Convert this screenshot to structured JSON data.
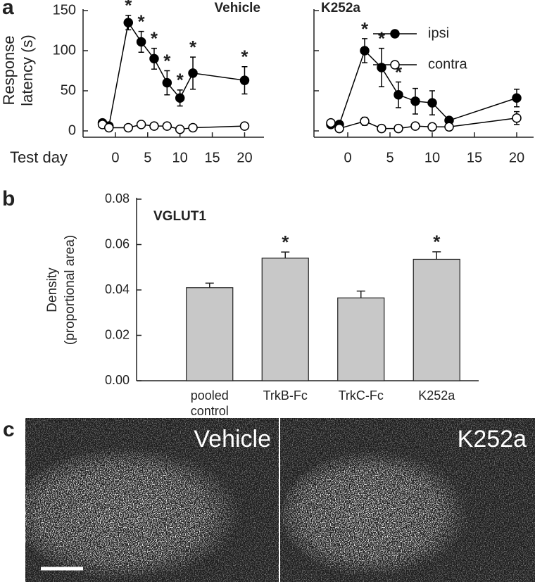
{
  "chart_data": [
    {
      "type": "line",
      "panel_label": "a",
      "title": "Vehicle",
      "ylabel": [
        "Response",
        "latency (s)"
      ],
      "xlabel": "Test day",
      "x": [
        -2,
        -1,
        2,
        4,
        6,
        8,
        10,
        12,
        20
      ],
      "series": [
        {
          "color": "#000000",
          "marker_fill": "#000000",
          "values": [
            10,
            6,
            135,
            111,
            90,
            60,
            41,
            72,
            63
          ],
          "errors": [
            3,
            2,
            9,
            13,
            13,
            15,
            10,
            20,
            17
          ]
        },
        {
          "color": "#000000",
          "marker_fill": "#ffffff",
          "values": [
            8,
            4,
            4,
            8,
            6,
            6,
            2,
            4,
            6
          ],
          "errors": [
            2,
            1,
            2,
            2,
            2,
            2,
            1,
            2,
            2
          ]
        }
      ],
      "significant": [
        false,
        false,
        true,
        true,
        true,
        true,
        true,
        true,
        true
      ],
      "significance_mark": "*",
      "xlim": [
        -5,
        23
      ],
      "xticks": [
        0,
        5,
        10,
        15,
        20
      ],
      "ylim": [
        0,
        150
      ],
      "yticks": [
        0,
        50,
        100,
        150
      ],
      "ytick_labels": true,
      "legend": false
    },
    {
      "type": "line",
      "title": "K252a",
      "x": [
        -2,
        -1,
        2,
        4,
        6,
        8,
        10,
        12,
        20
      ],
      "series": [
        {
          "name": "ipsi",
          "color": "#000000",
          "marker_fill": "#000000",
          "values": [
            8,
            8,
            100,
            79,
            45,
            37,
            35,
            13,
            41
          ],
          "errors": [
            2,
            2,
            15,
            24,
            16,
            16,
            15,
            4,
            11
          ]
        },
        {
          "name": "contra",
          "color": "#000000",
          "marker_fill": "#ffffff",
          "values": [
            10,
            3,
            12,
            3,
            3,
            6,
            5,
            5,
            16
          ],
          "errors": [
            2,
            1,
            5,
            1,
            1,
            2,
            2,
            1,
            8
          ]
        }
      ],
      "significant": [
        false,
        false,
        true,
        true,
        true,
        false,
        false,
        false,
        false
      ],
      "significance_mark": "*",
      "xlim": [
        -4,
        22
      ],
      "xticks": [
        0,
        5,
        10,
        15,
        20
      ],
      "ylim": [
        0,
        150
      ],
      "yticks": [
        0,
        50,
        100,
        150
      ],
      "ytick_labels": false,
      "legend": "upper right"
    },
    {
      "type": "bar",
      "panel_label": "b",
      "title": "VGLUT1",
      "ylabel": [
        "Density",
        "(proportional area)"
      ],
      "categories": [
        "pooled control",
        "TrkB-Fc",
        "TrkC-Fc",
        "K252a"
      ],
      "values": [
        0.041,
        0.054,
        0.0365,
        0.0535
      ],
      "errors": [
        0.002,
        0.0027,
        0.003,
        0.0033
      ],
      "color": "#c8c8c8",
      "significant": [
        false,
        true,
        false,
        true
      ],
      "significance_mark": "*",
      "ylim": [
        0,
        0.08
      ],
      "yticks": [
        {
          "value": 0,
          "label": "0.00"
        },
        {
          "value": 0.02,
          "label": "0.02"
        },
        {
          "value": 0.04,
          "label": "0.04"
        },
        {
          "value": 0.06,
          "label": "0.06"
        },
        {
          "value": 0.08,
          "label": "0.08"
        }
      ]
    }
  ],
  "micrographs": {
    "panel_label": "c",
    "images": [
      {
        "label": "Vehicle"
      },
      {
        "label": "K252a"
      }
    ]
  }
}
